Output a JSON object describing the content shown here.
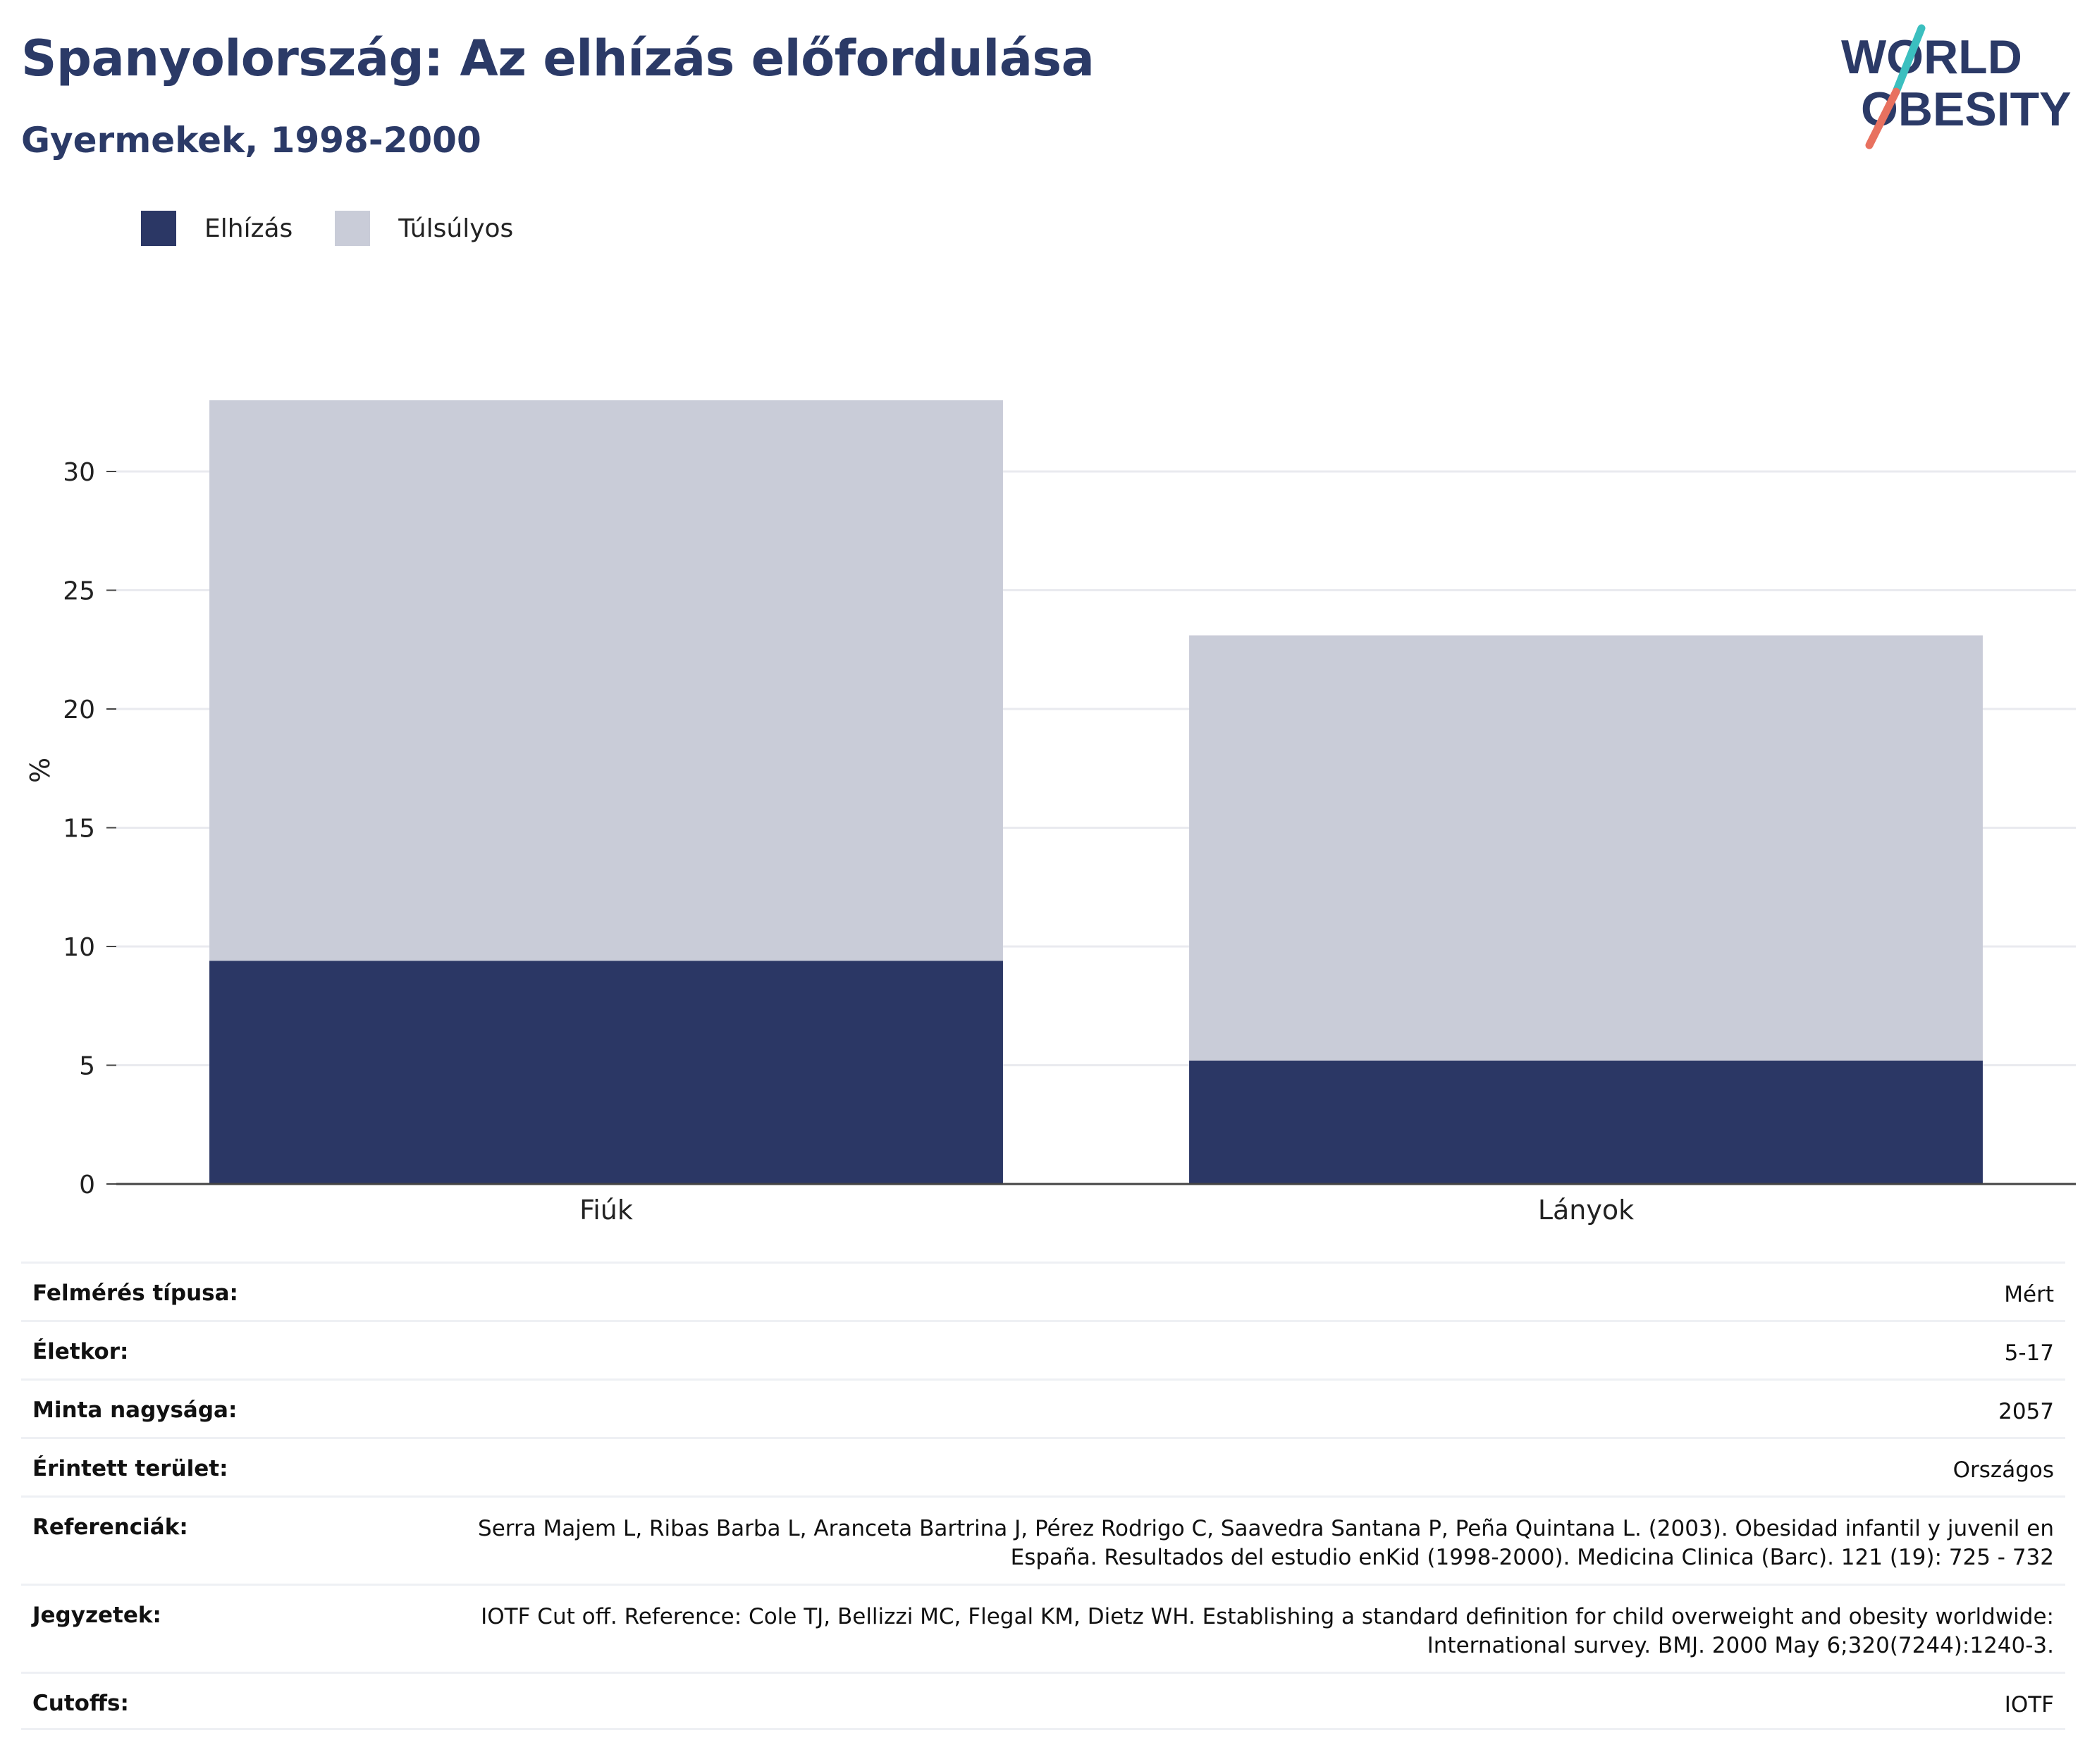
{
  "header": {
    "title": "Spanyolország: Az elhízás előfordulása",
    "subtitle": "Gyermekek, 1998-2000"
  },
  "logo": {
    "line1": "WORLD",
    "line2": "OBESITY",
    "text_color": "#2b3a67",
    "accent_teal": "#3bbfbf",
    "accent_coral": "#e8715f"
  },
  "legend": [
    {
      "label": "Elhízás",
      "color": "#2b3765"
    },
    {
      "label": "Túlsúlyos",
      "color": "#c9ccd8"
    }
  ],
  "chart_data": {
    "type": "bar",
    "stacked": true,
    "categories": [
      "Fiúk",
      "Lányok"
    ],
    "series": [
      {
        "name": "Elhízás",
        "values": [
          9.4,
          5.2
        ],
        "color": "#2b3765"
      },
      {
        "name": "Túlsúlyos",
        "values": [
          23.6,
          17.9
        ],
        "color": "#c9ccd8"
      }
    ],
    "totals": [
      33.0,
      23.1
    ],
    "ylabel": "%",
    "xlabel": "",
    "ylim": [
      0,
      33
    ],
    "yticks": [
      0,
      5,
      10,
      15,
      20,
      25,
      30
    ],
    "grid": true,
    "legend_position": "top-left"
  },
  "details": [
    {
      "key": "Felmérés típusa:",
      "value": "Mért"
    },
    {
      "key": "Életkor:",
      "value": "5-17"
    },
    {
      "key": "Minta nagysága:",
      "value": "2057"
    },
    {
      "key": "Érintett terület:",
      "value": "Országos"
    },
    {
      "key": "Referenciák:",
      "value": "Serra Majem L, Ribas Barba L, Aranceta Bartrina J, Pérez Rodrigo C, Saavedra Santana P, Peña Quintana L. (2003). Obesidad infantil y juvenil en España. Resultados del estudio enKid (1998-2000). Medicina Clinica (Barc). 121 (19): 725 - 732"
    },
    {
      "key": "Jegyzetek:",
      "value": "IOTF Cut off. Reference: Cole TJ, Bellizzi MC, Flegal KM, Dietz WH. Establishing a standard definition for child overweight and obesity worldwide: International survey. BMJ. 2000 May 6;320(7244):1240-3."
    },
    {
      "key": "Cutoffs:",
      "value": "IOTF"
    }
  ]
}
